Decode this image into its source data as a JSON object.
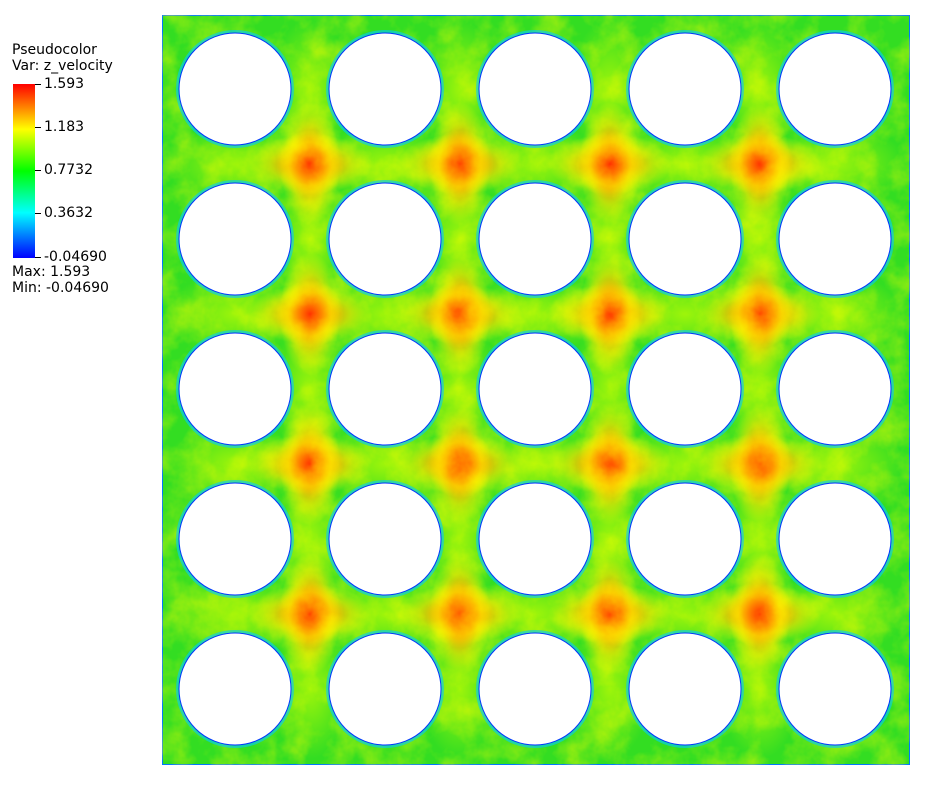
{
  "legend": {
    "title": "Pseudocolor",
    "variable": "Var: z_velocity",
    "ticks": [
      "1.593",
      "1.183",
      "0.7732",
      "0.3632",
      "-0.04690"
    ],
    "max": "Max:  1.593",
    "min": "Min: -0.04690"
  },
  "colors": {
    "colormap": [
      "#0000ff",
      "#00ffff",
      "#00ff00",
      "#ffff00",
      "#ff0000"
    ],
    "background_field": "#33dd22",
    "rod_fill": "#ffffff"
  },
  "plot": {
    "description_value_range": [
      -0.0469,
      1.593
    ],
    "grid": {
      "rows": 5,
      "cols": 5
    }
  }
}
